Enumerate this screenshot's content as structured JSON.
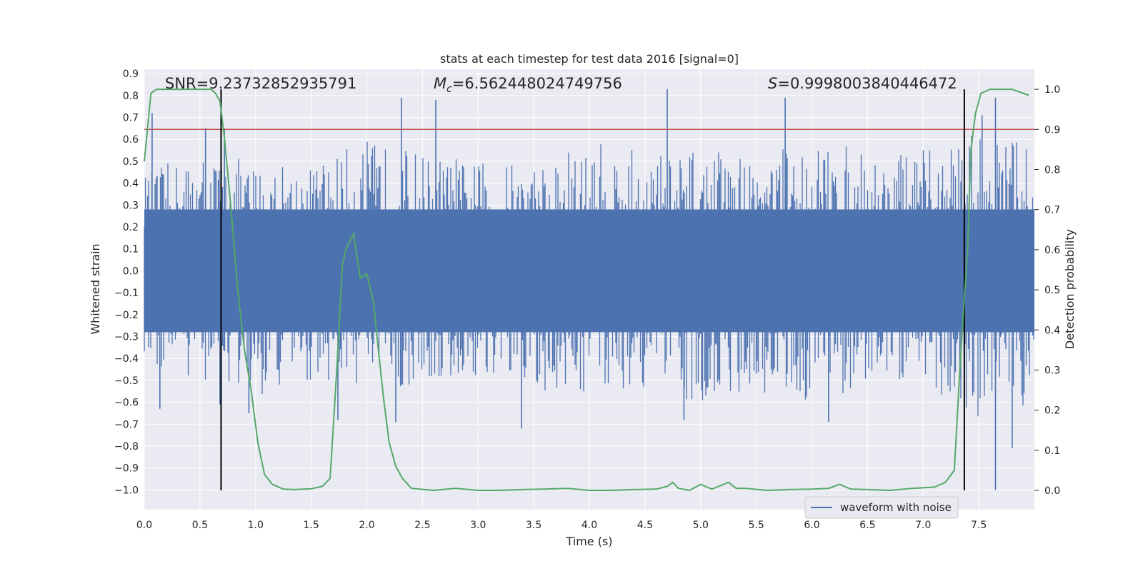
{
  "chart_data": {
    "type": "line",
    "title": "stats at each timestep for test data 2016 [signal=0]",
    "xlabel": "Time (s)",
    "ylabel": "Whitened strain",
    "y2label": "Detection probability",
    "xlim": [
      0.0,
      8.0
    ],
    "ylim": [
      -1.09,
      0.92
    ],
    "y2lim": [
      -0.048,
      1.05
    ],
    "xticks": [
      "0.0",
      "0.5",
      "1.0",
      "1.5",
      "2.0",
      "2.5",
      "3.0",
      "3.5",
      "4.0",
      "4.5",
      "5.0",
      "5.5",
      "6.0",
      "6.5",
      "7.0",
      "7.5"
    ],
    "yticks": [
      "0.9",
      "0.8",
      "0.7",
      "0.6",
      "0.5",
      "0.4",
      "0.3",
      "0.2",
      "0.1",
      "0.0",
      "−0.1",
      "−0.2",
      "−0.3",
      "−0.4",
      "−0.5",
      "−0.6",
      "−0.7",
      "−0.8",
      "−0.9",
      "−1.0"
    ],
    "y2ticks": [
      "1.0",
      "0.9",
      "0.8",
      "0.7",
      "0.6",
      "0.5",
      "0.4",
      "0.3",
      "0.2",
      "0.1",
      "0.0"
    ],
    "grid": true,
    "legend_placement": "lower-right",
    "annotations": {
      "snr": "SNR=9.23732852935791",
      "mc_symbol": "M",
      "mc_sub": "c",
      "mc_value": "=6.562448024749756",
      "s_symbol": "S",
      "s_value": "=0.9998003840446472"
    },
    "series": [
      {
        "name": "waveform with noise",
        "axis": "left",
        "color": "#4c72b0",
        "envelope": {
          "x": [
            0.0,
            0.5,
            1.0,
            1.5,
            2.0,
            2.5,
            3.0,
            3.5,
            4.0,
            4.5,
            5.0,
            5.5,
            6.0,
            6.5,
            7.0,
            7.5,
            8.0
          ],
          "max": [
            0.45,
            0.55,
            0.5,
            0.5,
            0.6,
            0.55,
            0.5,
            0.5,
            0.6,
            0.55,
            0.55,
            0.55,
            0.6,
            0.55,
            0.55,
            0.65,
            0.6
          ],
          "min": [
            -0.45,
            -0.5,
            -0.6,
            -0.5,
            -0.55,
            -0.55,
            -0.5,
            -0.6,
            -0.55,
            -0.55,
            -0.6,
            -0.55,
            -0.6,
            -0.55,
            -0.5,
            -0.7,
            -0.6
          ]
        },
        "peaks": [
          {
            "x": 0.07,
            "y": 0.72
          },
          {
            "x": 0.55,
            "y": 0.65
          },
          {
            "x": 0.72,
            "y": 0.65
          },
          {
            "x": 2.31,
            "y": 0.79
          },
          {
            "x": 2.62,
            "y": 0.78
          },
          {
            "x": 4.7,
            "y": 0.83
          },
          {
            "x": 5.76,
            "y": 0.79
          },
          {
            "x": 7.53,
            "y": 0.71
          },
          {
            "x": 7.65,
            "y": 0.79
          },
          {
            "x": 0.14,
            "y": -0.63
          },
          {
            "x": 0.68,
            "y": -0.61
          },
          {
            "x": 0.94,
            "y": -0.65
          },
          {
            "x": 1.74,
            "y": -0.68
          },
          {
            "x": 2.26,
            "y": -0.69
          },
          {
            "x": 3.39,
            "y": -0.72
          },
          {
            "x": 4.85,
            "y": -0.68
          },
          {
            "x": 6.15,
            "y": -0.69
          },
          {
            "x": 7.65,
            "y": -1.0
          },
          {
            "x": 7.8,
            "y": -0.81
          }
        ]
      },
      {
        "name": "",
        "axis": "right",
        "color": "#55a868",
        "x": [
          0.0,
          0.06,
          0.11,
          0.2,
          0.3,
          0.4,
          0.5,
          0.6,
          0.64,
          0.68,
          0.72,
          0.78,
          0.84,
          0.9,
          0.96,
          1.02,
          1.08,
          1.15,
          1.25,
          1.35,
          1.5,
          1.6,
          1.67,
          1.73,
          1.78,
          1.81,
          1.88,
          1.94,
          2.0,
          2.06,
          2.1,
          2.15,
          2.2,
          2.26,
          2.32,
          2.4,
          2.6,
          2.8,
          3.0,
          3.2,
          3.4,
          3.6,
          3.8,
          4.0,
          4.2,
          4.4,
          4.6,
          4.7,
          4.75,
          4.8,
          4.9,
          5.0,
          5.1,
          5.25,
          5.32,
          5.4,
          5.6,
          5.8,
          6.0,
          6.15,
          6.25,
          6.35,
          6.5,
          6.7,
          6.9,
          7.1,
          7.2,
          7.28,
          7.33,
          7.37,
          7.4,
          7.43,
          7.47,
          7.52,
          7.6,
          7.8,
          7.9,
          7.95
        ],
        "y": [
          0.82,
          0.99,
          1.0,
          1.0,
          1.0,
          1.0,
          1.0,
          1.0,
          0.99,
          0.97,
          0.88,
          0.7,
          0.5,
          0.35,
          0.25,
          0.12,
          0.04,
          0.015,
          0.003,
          0.002,
          0.004,
          0.01,
          0.03,
          0.3,
          0.56,
          0.6,
          0.64,
          0.53,
          0.54,
          0.47,
          0.36,
          0.23,
          0.12,
          0.06,
          0.03,
          0.005,
          0.0,
          0.005,
          0.0,
          0.0,
          0.002,
          0.003,
          0.005,
          0.0,
          0.0,
          0.002,
          0.003,
          0.01,
          0.02,
          0.005,
          0.0,
          0.015,
          0.003,
          0.02,
          0.005,
          0.005,
          0.0,
          0.002,
          0.003,
          0.005,
          0.015,
          0.003,
          0.002,
          0.0,
          0.005,
          0.008,
          0.02,
          0.05,
          0.3,
          0.48,
          0.6,
          0.85,
          0.94,
          0.99,
          1.0,
          1.0,
          0.99,
          0.985
        ]
      }
    ],
    "threshold": {
      "axis": "right",
      "y": 0.9,
      "color": "#c44e52"
    },
    "vlines": [
      {
        "x": 0.69,
        "color": "#000000"
      },
      {
        "x": 7.37,
        "color": "#000000"
      }
    ]
  }
}
